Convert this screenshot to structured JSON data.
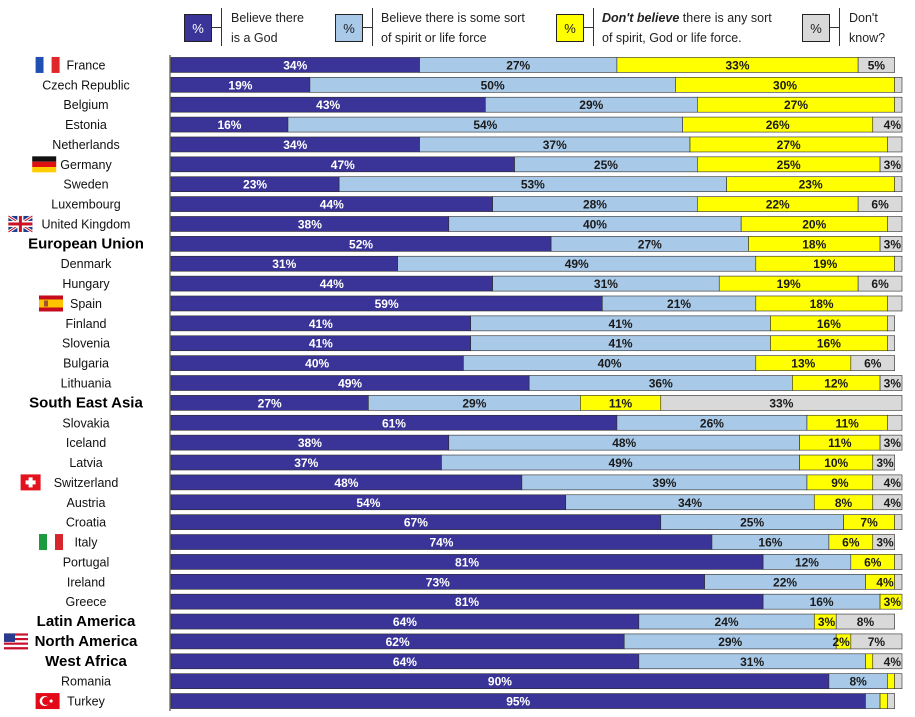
{
  "legend": {
    "items": [
      {
        "key": "god",
        "symbol": "%",
        "line1": "Believe there",
        "line2": "is a God",
        "color": "#3a3498"
      },
      {
        "key": "spirit",
        "symbol": "%",
        "line1": "Believe there is some sort",
        "line2": "of spirit or life force",
        "color": "#a9c9e8"
      },
      {
        "key": "none",
        "symbol": "%",
        "line1_bold": "Don't believe",
        "line1_rest": " there is any sort",
        "line2": "of spirit, God or life force.",
        "color": "#ffff00"
      },
      {
        "key": "dk",
        "symbol": "%",
        "line1": "Don't",
        "line2": "know?",
        "color": "#d9d9d9"
      }
    ]
  },
  "chart_data": {
    "type": "bar",
    "orientation": "horizontal",
    "stacked": true,
    "percent_scale": [
      0,
      100
    ],
    "series": [
      {
        "name": "Believe there is a God",
        "color": "#3a3498"
      },
      {
        "name": "Believe there is some sort of spirit or life force",
        "color": "#a9c9e8"
      },
      {
        "name": "Don't believe there is any sort of spirit, God or life force.",
        "color": "#ffff00"
      },
      {
        "name": "Don't know?",
        "color": "#d9d9d9"
      }
    ],
    "rows": [
      {
        "label": "France",
        "flag": "france",
        "values": [
          34,
          27,
          33,
          5
        ],
        "labels": [
          "34%",
          "27%",
          "33%",
          "5%"
        ]
      },
      {
        "label": "Czech Republic",
        "values": [
          19,
          50,
          30,
          1
        ],
        "labels": [
          "19%",
          "50%",
          "30%",
          ""
        ]
      },
      {
        "label": "Belgium",
        "values": [
          43,
          29,
          27,
          1
        ],
        "labels": [
          "43%",
          "29%",
          "27%",
          ""
        ]
      },
      {
        "label": "Estonia",
        "values": [
          16,
          54,
          26,
          4
        ],
        "labels": [
          "16%",
          "54%",
          "26%",
          "4%"
        ]
      },
      {
        "label": "Netherlands",
        "values": [
          34,
          37,
          27,
          2
        ],
        "labels": [
          "34%",
          "37%",
          "27%",
          ""
        ]
      },
      {
        "label": "Germany",
        "flag": "germany",
        "values": [
          47,
          25,
          25,
          3
        ],
        "labels": [
          "47%",
          "25%",
          "25%",
          "3%"
        ]
      },
      {
        "label": "Sweden",
        "values": [
          23,
          53,
          23,
          1
        ],
        "labels": [
          "23%",
          "53%",
          "23%",
          ""
        ]
      },
      {
        "label": "Luxembourg",
        "values": [
          44,
          28,
          22,
          6
        ],
        "labels": [
          "44%",
          "28%",
          "22%",
          "6%"
        ]
      },
      {
        "label": "United Kingdom",
        "flag": "uk",
        "values": [
          38,
          40,
          20,
          2
        ],
        "labels": [
          "38%",
          "40%",
          "20%",
          ""
        ]
      },
      {
        "label": "European Union",
        "region": true,
        "values": [
          52,
          27,
          18,
          3
        ],
        "labels": [
          "52%",
          "27%",
          "18%",
          "3%"
        ]
      },
      {
        "label": "Denmark",
        "values": [
          31,
          49,
          19,
          1
        ],
        "labels": [
          "31%",
          "49%",
          "19%",
          ""
        ]
      },
      {
        "label": "Hungary",
        "values": [
          44,
          31,
          19,
          6
        ],
        "labels": [
          "44%",
          "31%",
          "19%",
          "6%"
        ]
      },
      {
        "label": "Spain",
        "flag": "spain",
        "values": [
          59,
          21,
          18,
          2
        ],
        "labels": [
          "59%",
          "21%",
          "18%",
          ""
        ]
      },
      {
        "label": "Finland",
        "values": [
          41,
          41,
          16,
          1
        ],
        "labels": [
          "41%",
          "41%",
          "16%",
          ""
        ]
      },
      {
        "label": "Slovenia",
        "values": [
          41,
          41,
          16,
          1
        ],
        "labels": [
          "41%",
          "41%",
          "16%",
          ""
        ]
      },
      {
        "label": "Bulgaria",
        "values": [
          40,
          40,
          13,
          6
        ],
        "labels": [
          "40%",
          "40%",
          "13%",
          "6%"
        ]
      },
      {
        "label": "Lithuania",
        "values": [
          49,
          36,
          12,
          3
        ],
        "labels": [
          "49%",
          "36%",
          "12%",
          "3%"
        ]
      },
      {
        "label": "South East Asia",
        "region": true,
        "values": [
          27,
          29,
          11,
          33
        ],
        "labels": [
          "27%",
          "29%",
          "11%",
          "33%"
        ]
      },
      {
        "label": "Slovakia",
        "values": [
          61,
          26,
          11,
          2
        ],
        "labels": [
          "61%",
          "26%",
          "11%",
          ""
        ]
      },
      {
        "label": "Iceland",
        "values": [
          38,
          48,
          11,
          3
        ],
        "labels": [
          "38%",
          "48%",
          "11%",
          "3%"
        ]
      },
      {
        "label": "Latvia",
        "values": [
          37,
          49,
          10,
          3
        ],
        "labels": [
          "37%",
          "49%",
          "10%",
          "3%"
        ]
      },
      {
        "label": "Switzerland",
        "flag": "switzerland",
        "values": [
          48,
          39,
          9,
          4
        ],
        "labels": [
          "48%",
          "39%",
          "9%",
          "4%"
        ]
      },
      {
        "label": "Austria",
        "values": [
          54,
          34,
          8,
          4
        ],
        "labels": [
          "54%",
          "34%",
          "8%",
          "4%"
        ]
      },
      {
        "label": "Croatia",
        "values": [
          67,
          25,
          7,
          1
        ],
        "labels": [
          "67%",
          "25%",
          "7%",
          ""
        ]
      },
      {
        "label": "Italy",
        "flag": "italy",
        "values": [
          74,
          16,
          6,
          3
        ],
        "labels": [
          "74%",
          "16%",
          "6%",
          "3%"
        ]
      },
      {
        "label": "Portugal",
        "values": [
          81,
          12,
          6,
          1
        ],
        "labels": [
          "81%",
          "12%",
          "6%",
          ""
        ]
      },
      {
        "label": "Ireland",
        "values": [
          73,
          22,
          4,
          1
        ],
        "labels": [
          "73%",
          "22%",
          "4%",
          ""
        ]
      },
      {
        "label": "Greece",
        "values": [
          81,
          16,
          3,
          0
        ],
        "labels": [
          "81%",
          "16%",
          "3%",
          ""
        ]
      },
      {
        "label": "Latin America",
        "region": true,
        "values": [
          64,
          24,
          3,
          8
        ],
        "labels": [
          "64%",
          "24%",
          "3%",
          "8%"
        ]
      },
      {
        "label": "North America",
        "region": true,
        "flag": "usa",
        "values": [
          62,
          29,
          2,
          7
        ],
        "labels": [
          "62%",
          "29%",
          "2%",
          "7%"
        ]
      },
      {
        "label": "West Africa",
        "region": true,
        "values": [
          64,
          31,
          1,
          4
        ],
        "labels": [
          "64%",
          "31%",
          "",
          "4%"
        ]
      },
      {
        "label": "Romania",
        "values": [
          90,
          8,
          1,
          1
        ],
        "labels": [
          "90%",
          "8%",
          "",
          ""
        ]
      },
      {
        "label": "Turkey",
        "flag": "turkey",
        "values": [
          95,
          2,
          1,
          1
        ],
        "labels": [
          "95%",
          "",
          "",
          ""
        ]
      }
    ]
  }
}
